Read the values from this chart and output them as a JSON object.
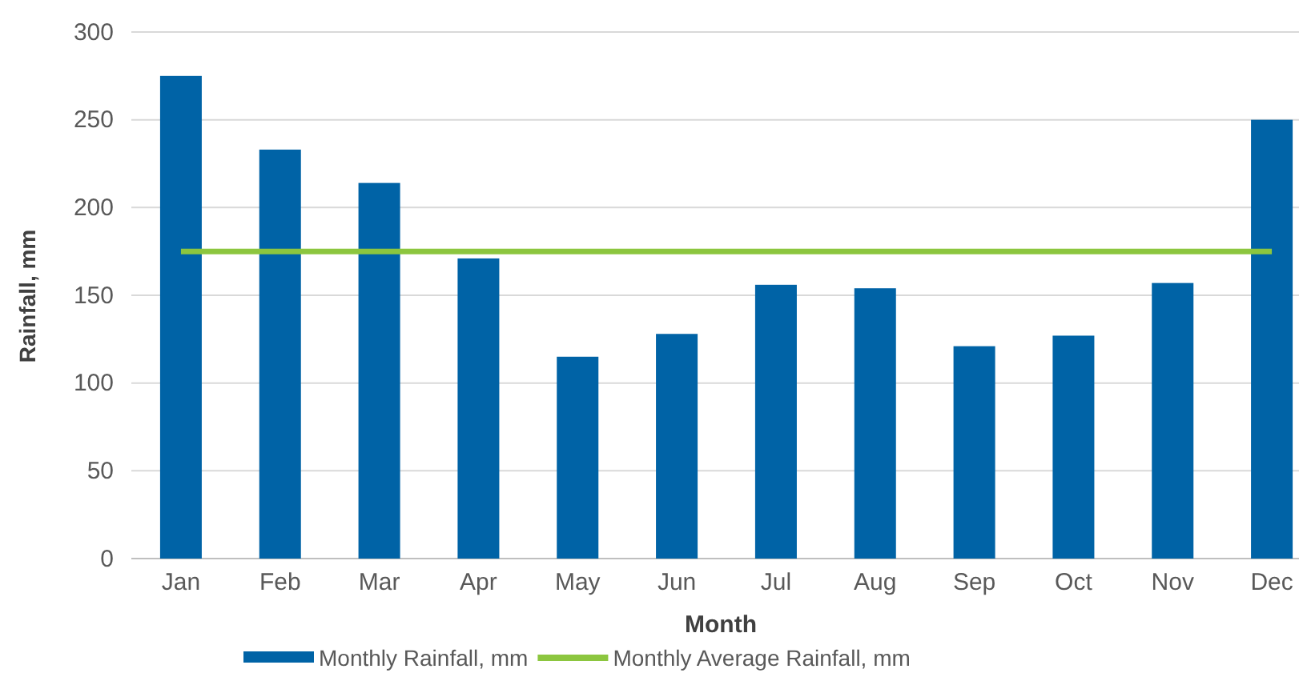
{
  "chart_data": {
    "type": "bar",
    "xlabel": "Month",
    "ylabel": "Rainfall, mm",
    "categories": [
      "Jan",
      "Feb",
      "Mar",
      "Apr",
      "May",
      "Jun",
      "Jul",
      "Aug",
      "Sep",
      "Oct",
      "Nov",
      "Dec"
    ],
    "series": [
      {
        "name": "Monthly Rainfall, mm",
        "color": "#0063a6",
        "values": [
          275,
          233,
          214,
          171,
          115,
          128,
          156,
          154,
          121,
          127,
          157,
          250
        ]
      },
      {
        "name": "Monthly Average Rainfall, mm",
        "type": "line",
        "color": "#8cc63f",
        "values": [
          175,
          175,
          175,
          175,
          175,
          175,
          175,
          175,
          175,
          175,
          175,
          175
        ]
      }
    ],
    "ylim": [
      0,
      300
    ],
    "yticks": [
      0,
      50,
      100,
      150,
      200,
      250,
      300
    ],
    "grid": "y",
    "legend": "bottom"
  }
}
